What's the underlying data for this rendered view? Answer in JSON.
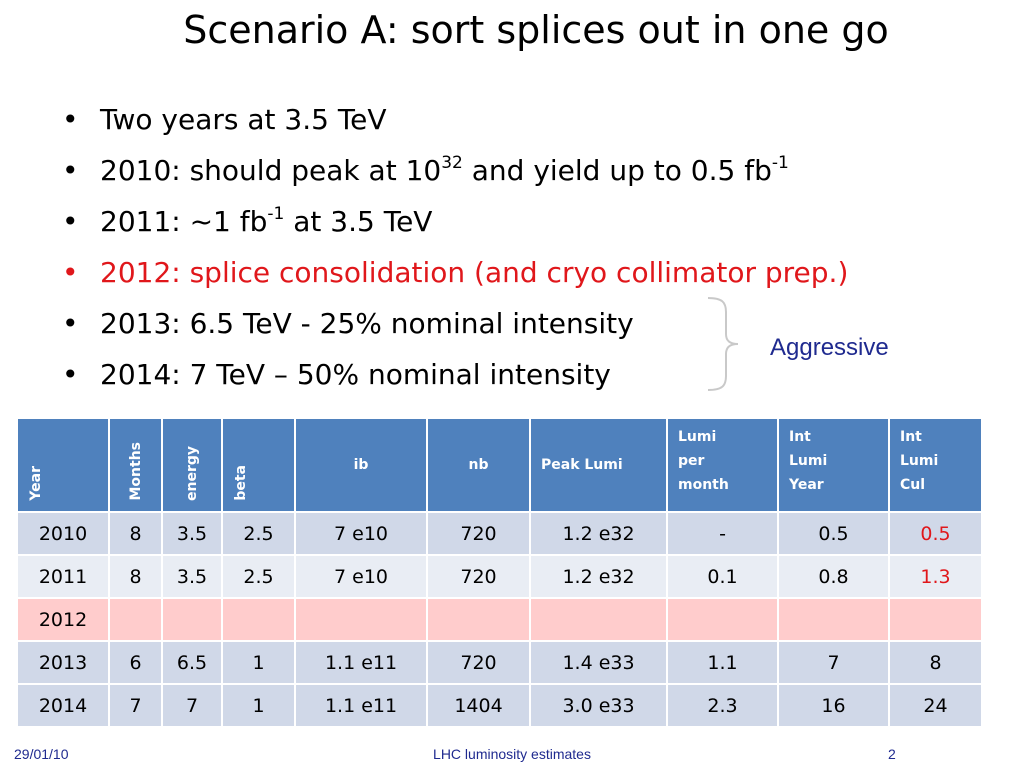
{
  "slide": {
    "title": "Scenario A: sort splices out in one go",
    "bullets": [
      {
        "text": "Two years at 3.5 TeV",
        "color": "#000000"
      },
      {
        "text": "2010: should peak at 10",
        "sup": "32",
        "text2": " and yield up to 0.5 fb",
        "sup2": "-1",
        "color": "#000000"
      },
      {
        "text": "2011: ~1 fb",
        "sup": "-1",
        "text2": " at 3.5 TeV",
        "color": "#000000"
      },
      {
        "text": "2012: splice consolidation (and cryo collimator prep.)",
        "color": "#e0171b"
      },
      {
        "text": "2013: 6.5 TeV - 25% nominal intensity",
        "color": "#000000"
      },
      {
        "text": "2014: 7 TeV – 50% nominal intensity",
        "color": "#000000"
      }
    ],
    "brace_label": "Aggressive",
    "table": {
      "headers": {
        "year": "Year",
        "months": "Months",
        "energy": "energy",
        "beta": "beta",
        "ib": "ib",
        "nb": "nb",
        "peak_lumi": "Peak Lumi",
        "lumi_per_month": [
          "Lumi",
          "per",
          "month"
        ],
        "int_lumi_year": [
          "Int",
          "Lumi",
          "Year"
        ],
        "int_lumi_cul": [
          "Int",
          "Lumi",
          "Cul"
        ]
      },
      "rows": [
        {
          "year": "2010",
          "months": "8",
          "energy": "3.5",
          "beta": "2.5",
          "ib": "7 e10",
          "nb": "720",
          "peak_lumi": "1.2 e32",
          "lumi_per_month": "-",
          "int_lumi_year": "0.5",
          "int_lumi_cul": "0.5"
        },
        {
          "year": "2011",
          "months": "8",
          "energy": "3.5",
          "beta": "2.5",
          "ib": "7 e10",
          "nb": "720",
          "peak_lumi": "1.2 e32",
          "lumi_per_month": "0.1",
          "int_lumi_year": "0.8",
          "int_lumi_cul": "1.3"
        },
        {
          "year": "2012",
          "months": "",
          "energy": "",
          "beta": "",
          "ib": "",
          "nb": "",
          "peak_lumi": "",
          "lumi_per_month": "",
          "int_lumi_year": "",
          "int_lumi_cul": ""
        },
        {
          "year": "2013",
          "months": "6",
          "energy": "6.5",
          "beta": "1",
          "ib": "1.1 e11",
          "nb": "720",
          "peak_lumi": "1.4 e33",
          "lumi_per_month": "1.1",
          "int_lumi_year": "7",
          "int_lumi_cul": "8"
        },
        {
          "year": "2014",
          "months": "7",
          "energy": "7",
          "beta": "1",
          "ib": "1.1 e11",
          "nb": "1404",
          "peak_lumi": "3.0 e33",
          "lumi_per_month": "2.3",
          "int_lumi_year": "16",
          "int_lumi_cul": "24"
        }
      ]
    },
    "footer": {
      "date": "29/01/10",
      "center": "LHC luminosity estimates",
      "page": "2"
    },
    "colors": {
      "header_blue": "#4f81bd",
      "row_odd": "#d0d8e8",
      "row_even": "#e9edf4",
      "row_2012": "#ffcccc",
      "highlight_red": "#e0171b",
      "footer_blue": "#1f2a8f"
    }
  }
}
